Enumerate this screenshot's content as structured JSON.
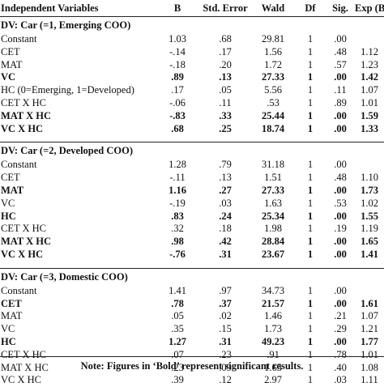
{
  "headers": [
    "Independent Variables",
    "B",
    "Std. Error",
    "Wald",
    "Df",
    "Sig.",
    "Exp (B)"
  ],
  "sections": [
    {
      "title": "DV: Car (=1, Emerging COO)",
      "rows": [
        {
          "cells": [
            "Constant",
            "1.03",
            ".68",
            "29.81",
            "1",
            ".00",
            ""
          ],
          "bold": false
        },
        {
          "cells": [
            "CET",
            "-.14",
            ".17",
            "1.56",
            "1",
            ".48",
            "1.12"
          ],
          "bold": false
        },
        {
          "cells": [
            "MAT",
            "-.18",
            ".20",
            "1.72",
            "1",
            ".57",
            "1.23"
          ],
          "bold": false
        },
        {
          "cells": [
            "VC",
            ".89",
            ".13",
            "27.33",
            "1",
            ".00",
            "1.42"
          ],
          "bold": true
        },
        {
          "cells": [
            "HC (0=Emerging, 1=Developed)",
            ".17",
            ".05",
            "5.56",
            "1",
            ".11",
            "1.07"
          ],
          "bold": false
        },
        {
          "cells": [
            "CET X HC",
            "-.06",
            ".11",
            ".53",
            "1",
            ".89",
            "1.01"
          ],
          "bold": false
        },
        {
          "cells": [
            "MAT X HC",
            "-.83",
            ".33",
            "25.44",
            "1",
            ".00",
            "1.59"
          ],
          "bold": true
        },
        {
          "cells": [
            "VC X HC",
            ".68",
            ".25",
            "18.74",
            "1",
            ".00",
            "1.33"
          ],
          "bold": true
        }
      ]
    },
    {
      "title": "DV: Car (=2, Developed COO)",
      "rows": [
        {
          "cells": [
            "Constant",
            "1.28",
            ".79",
            "31.18",
            "1",
            ".00",
            ""
          ],
          "bold": false
        },
        {
          "cells": [
            "CET",
            "-.11",
            ".13",
            "1.51",
            "1",
            ".48",
            "1.10"
          ],
          "bold": false
        },
        {
          "cells": [
            "MAT",
            "1.16",
            ".27",
            "27.33",
            "1",
            ".00",
            "1.73"
          ],
          "bold": true
        },
        {
          "cells": [
            "VC",
            "-.19",
            ".03",
            "1.63",
            "1",
            ".53",
            "1.02"
          ],
          "bold": false
        },
        {
          "cells": [
            "HC",
            ".83",
            ".24",
            "25.34",
            "1",
            ".00",
            "1.55"
          ],
          "bold": true
        },
        {
          "cells": [
            "CET X HC",
            ".32",
            ".18",
            "1.98",
            "1",
            ".19",
            "1.19"
          ],
          "bold": false
        },
        {
          "cells": [
            "MAT X HC",
            ".98",
            ".42",
            "28.84",
            "1",
            ".00",
            "1.65"
          ],
          "bold": true
        },
        {
          "cells": [
            "VC X HC",
            "-.76",
            ".31",
            "23.67",
            "1",
            ".00",
            "1.41"
          ],
          "bold": true
        }
      ]
    },
    {
      "title": "DV: Car (=3, Domestic COO)",
      "rows": [
        {
          "cells": [
            "Constant",
            "1.41",
            ".97",
            "34.73",
            "1",
            ".00",
            ""
          ],
          "bold": false
        },
        {
          "cells": [
            "CET",
            ".78",
            ".37",
            "21.57",
            "1",
            ".00",
            "1.61"
          ],
          "bold": true
        },
        {
          "cells": [
            "MAT",
            ".05",
            ".02",
            "1.46",
            "1",
            ".21",
            "1.07"
          ],
          "bold": false
        },
        {
          "cells": [
            "VC",
            ".35",
            ".15",
            "1.73",
            "1",
            ".29",
            "1.21"
          ],
          "bold": false
        },
        {
          "cells": [
            "HC",
            "1.27",
            ".31",
            "49.23",
            "1",
            ".00",
            "1.77"
          ],
          "bold": true
        },
        {
          "cells": [
            "CET X HC",
            ".07",
            ".23",
            ".91",
            "1",
            ".78",
            "1.01"
          ],
          "bold": false
        },
        {
          "cells": [
            "MAT X HC",
            ".23",
            ".09",
            "1.65",
            "1",
            ".40",
            "1.08"
          ],
          "bold": false
        },
        {
          "cells": [
            "VC X HC",
            ".39",
            ".12",
            "2.97",
            "1",
            ".03",
            "1.11"
          ],
          "bold": false
        }
      ]
    }
  ],
  "note": "Note: Figures in ‘Bold’ represent significant results."
}
